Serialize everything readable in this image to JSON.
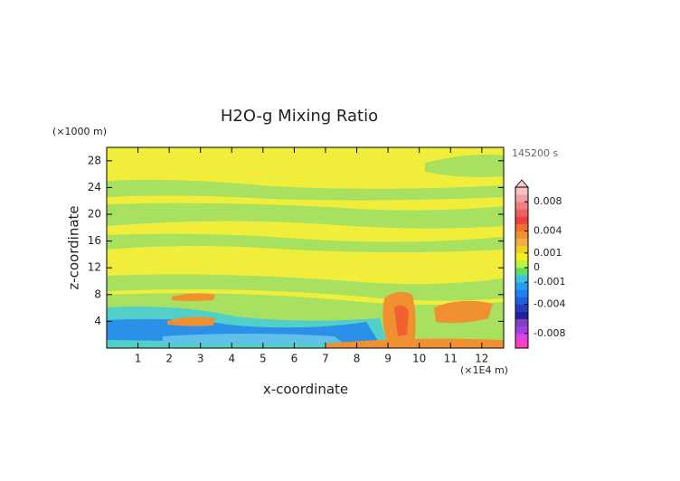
{
  "chart_data": {
    "type": "contour",
    "title": "H2O-g Mixing Ratio",
    "y_unit": "(×1000 m)",
    "x_unit": "(×1E4 m)",
    "time_label": "145200 s",
    "xlabel": "x-coordinate",
    "ylabel": "z-coordinate",
    "xlim": [
      0,
      12.7
    ],
    "ylim": [
      0,
      30
    ],
    "xticks": [
      1,
      2,
      3,
      4,
      5,
      6,
      7,
      8,
      9,
      10,
      11,
      12
    ],
    "yticks": [
      4,
      8,
      12,
      16,
      20,
      24,
      28
    ],
    "colorbar": {
      "levels": [
        -0.01,
        -0.009,
        -0.008,
        -0.007,
        -0.006,
        -0.005,
        -0.004,
        -0.003,
        -0.002,
        -0.001,
        -0.0005,
        0,
        0.0005,
        0.001,
        0.002,
        0.003,
        0.004,
        0.005,
        0.006,
        0.007,
        0.008,
        0.009,
        0.01
      ],
      "colors": [
        "#ff40c0",
        "#e040e0",
        "#a040e0",
        "#8040c0",
        "#2020a0",
        "#2040c0",
        "#2060e0",
        "#2080f0",
        "#20a0f0",
        "#40c0e0",
        "#60e060",
        "#c0f040",
        "#f0f020",
        "#f0d020",
        "#f0b040",
        "#f09030",
        "#f07030",
        "#f04040",
        "#f06060",
        "#f08080",
        "#f0a0a0",
        "#f8c0c0"
      ],
      "ticks": [
        0.008,
        0.004,
        0.001,
        0,
        -0.001,
        -0.004,
        -0.008
      ]
    }
  }
}
